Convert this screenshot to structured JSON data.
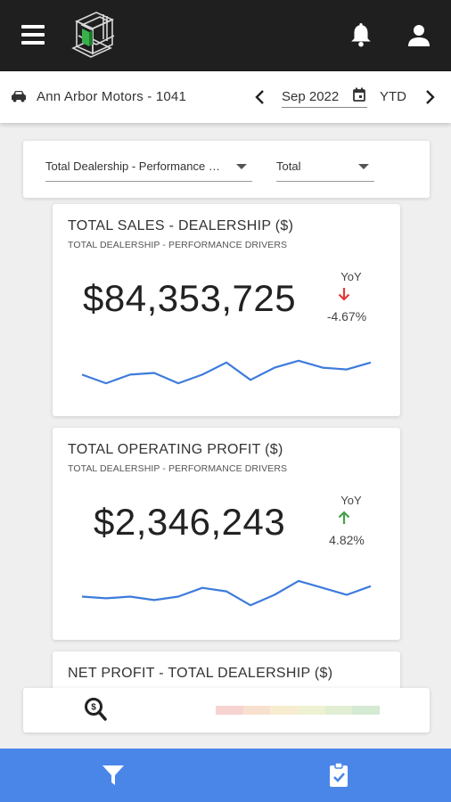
{
  "header": {
    "menu_icon": "hamburger-icon",
    "logo_icon": "cube-logo-icon",
    "notification_icon": "bell-icon",
    "account_icon": "user-icon"
  },
  "subheader": {
    "dealer_name": "Ann Arbor Motors - 1041",
    "month": "Sep 2022",
    "period": "YTD"
  },
  "filters": {
    "group_value": "Total Dealership - Performance Drivers",
    "dept_value": "Total"
  },
  "kpis": [
    {
      "title": "TOTAL SALES - DEALERSHIP ($)",
      "subtitle": "TOTAL DEALERSHIP - PERFORMANCE DRIVERS",
      "value": "$84,353,725",
      "yoy_label": "YoY",
      "yoy_value": "-4.67%",
      "yoy_direction": "down",
      "trend": [
        0.6,
        0.85,
        0.6,
        0.55,
        0.85,
        0.6,
        0.25,
        0.75,
        0.4,
        0.2,
        0.4,
        0.45,
        0.25
      ]
    },
    {
      "title": "TOTAL OPERATING PROFIT ($)",
      "subtitle": "TOTAL DEALERSHIP - PERFORMANCE DRIVERS",
      "value": "$2,346,243",
      "yoy_label": "YoY",
      "yoy_value": "4.82%",
      "yoy_direction": "up",
      "trend": [
        0.55,
        0.6,
        0.55,
        0.65,
        0.55,
        0.3,
        0.4,
        0.8,
        0.5,
        0.1,
        0.3,
        0.5,
        0.25
      ]
    },
    {
      "title": "NET PROFIT - TOTAL DEALERSHIP ($)"
    }
  ],
  "colors": {
    "topbar": "#1f1f1f",
    "accent": "#4a86e8",
    "spark": "#3d7bdc",
    "down": "#e53935",
    "up": "#43a047",
    "heat": [
      "#f6d3d1",
      "#f8e0cf",
      "#f7ecd0",
      "#eef2d2",
      "#e2eed4",
      "#d4ead2"
    ]
  },
  "bottom_nav": {
    "filter_icon": "filter-icon",
    "scorecard_icon": "clipboard-check-icon"
  }
}
